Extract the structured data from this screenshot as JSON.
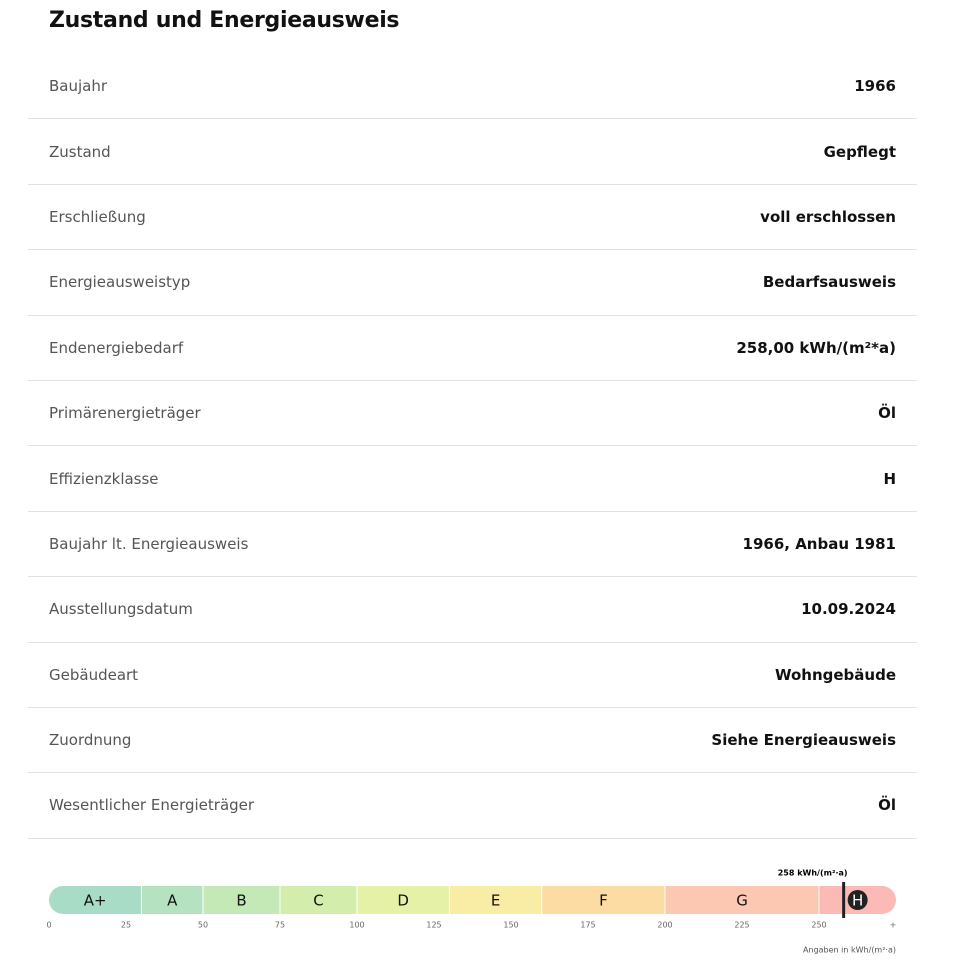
{
  "header": {
    "title": "Zustand und Energieausweis"
  },
  "rows": [
    {
      "label": "Baujahr",
      "value": "1966"
    },
    {
      "label": "Zustand",
      "value": "Gepflegt"
    },
    {
      "label": "Erschließung",
      "value": "voll erschlossen"
    },
    {
      "label": "Energieausweistyp",
      "value": "Bedarfsausweis"
    },
    {
      "label": "Endenergiebedarf",
      "value": "258,00 kWh/(m²*a)"
    },
    {
      "label": "Primärenergieträger",
      "value": "Öl"
    },
    {
      "label": "Effizienzklasse",
      "value": "H"
    },
    {
      "label": "Baujahr lt. Energieausweis",
      "value": "1966, Anbau 1981"
    },
    {
      "label": "Ausstellungsdatum",
      "value": "10.09.2024"
    },
    {
      "label": "Gebäudeart",
      "value": "Wohngebäude"
    },
    {
      "label": "Zuordnung",
      "value": "Siehe Energieausweis"
    },
    {
      "label": "Wesentlicher Energieträger",
      "value": "Öl"
    }
  ],
  "energy_scale": {
    "xlim": [
      0,
      275
    ],
    "ticks": [
      0,
      25,
      50,
      75,
      100,
      125,
      150,
      175,
      200,
      225,
      250
    ],
    "end_label": "+",
    "classes": [
      {
        "label": "A+",
        "from": 0,
        "to": 30,
        "color": "#a9dcc6"
      },
      {
        "label": "A",
        "from": 30,
        "to": 50,
        "color": "#b5e2c0"
      },
      {
        "label": "B",
        "from": 50,
        "to": 75,
        "color": "#c4e8b6"
      },
      {
        "label": "C",
        "from": 75,
        "to": 100,
        "color": "#d3edac"
      },
      {
        "label": "D",
        "from": 100,
        "to": 130,
        "color": "#e6f1a8"
      },
      {
        "label": "E",
        "from": 130,
        "to": 160,
        "color": "#f9eca4"
      },
      {
        "label": "F",
        "from": 160,
        "to": 200,
        "color": "#fddca4"
      },
      {
        "label": "G",
        "from": 200,
        "to": 250,
        "color": "#fdc8b2"
      },
      {
        "label": "H",
        "from": 250,
        "to": 275,
        "color": "#fcbab6"
      }
    ],
    "marker": {
      "value": 258,
      "label": "258 kWh/(m²·a)"
    },
    "footnote": "Angaben in kWh/(m²·a)"
  }
}
